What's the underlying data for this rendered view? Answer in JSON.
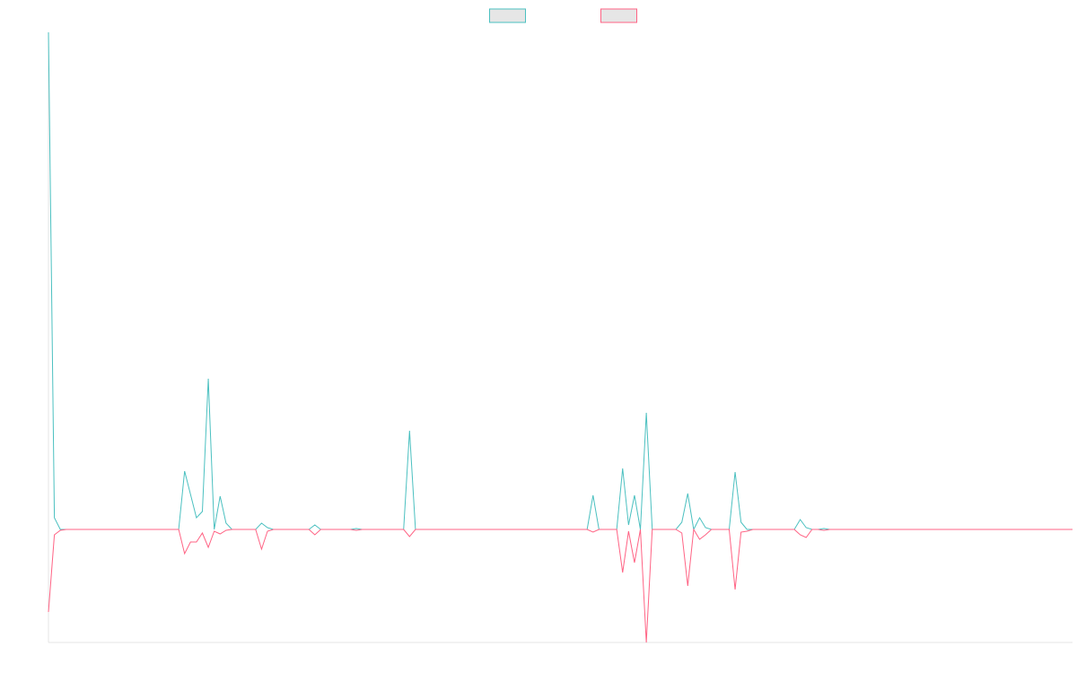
{
  "chart_data": {
    "type": "line",
    "ylim": [
      -126,
      554
    ],
    "legend": "top",
    "series": [
      {
        "color": "#4bc0c0",
        "values": [
          554,
          13,
          0,
          0,
          0,
          0,
          0,
          0,
          0,
          0,
          0,
          0,
          0,
          0,
          0,
          0,
          0,
          0,
          0,
          0,
          0,
          0,
          0,
          65,
          39,
          13,
          20,
          168,
          0,
          37,
          7,
          0,
          0,
          0,
          0,
          0,
          7,
          2,
          0,
          0,
          0,
          0,
          0,
          0,
          0,
          5,
          0,
          0,
          0,
          0,
          0,
          0,
          1,
          0,
          0,
          0,
          0,
          0,
          0,
          0,
          0,
          110,
          0,
          0,
          0,
          0,
          0,
          0,
          0,
          0,
          0,
          0,
          0,
          0,
          0,
          0,
          0,
          0,
          0,
          0,
          0,
          0,
          0,
          0,
          0,
          0,
          0,
          0,
          0,
          0,
          0,
          0,
          38,
          0,
          0,
          0,
          0,
          68,
          5,
          38,
          0,
          130,
          0,
          0,
          0,
          0,
          0,
          8,
          40,
          0,
          13,
          2,
          0,
          0,
          0,
          0,
          64,
          8,
          0,
          0,
          0,
          0,
          0,
          0,
          0,
          0,
          0,
          11,
          2,
          0,
          0,
          1,
          0,
          0,
          0,
          0,
          0,
          0,
          0,
          0,
          0,
          0,
          0,
          0,
          0,
          0,
          0,
          0,
          0,
          0,
          0,
          0,
          0,
          0,
          0,
          0,
          0,
          0,
          0,
          0,
          0,
          0,
          0,
          0,
          0,
          0,
          0,
          0,
          0,
          0,
          0,
          0,
          0,
          0
        ]
      },
      {
        "color": "#ff6384",
        "values": [
          -92,
          -6,
          -1,
          0,
          0,
          0,
          0,
          0,
          0,
          0,
          0,
          0,
          0,
          0,
          0,
          0,
          0,
          0,
          0,
          0,
          0,
          0,
          0,
          -27,
          -14,
          -14,
          -4,
          -20,
          -2,
          -5,
          -1,
          0,
          0,
          0,
          0,
          0,
          -22,
          -2,
          0,
          0,
          0,
          0,
          0,
          0,
          0,
          -6,
          0,
          0,
          0,
          0,
          0,
          0,
          -1,
          0,
          0,
          0,
          0,
          0,
          0,
          0,
          0,
          -8,
          0,
          0,
          0,
          0,
          0,
          0,
          0,
          0,
          0,
          0,
          0,
          0,
          0,
          0,
          0,
          0,
          0,
          0,
          0,
          0,
          0,
          0,
          0,
          0,
          0,
          0,
          0,
          0,
          0,
          0,
          -3,
          0,
          0,
          0,
          0,
          -48,
          -2,
          -37,
          0,
          -126,
          0,
          0,
          0,
          0,
          0,
          -4,
          -63,
          0,
          -11,
          -6,
          0,
          0,
          0,
          0,
          -67,
          -3,
          -2,
          0,
          0,
          0,
          0,
          0,
          0,
          0,
          0,
          -6,
          -9,
          0,
          0,
          -1,
          0,
          0,
          0,
          0,
          0,
          0,
          0,
          0,
          0,
          0,
          0,
          0,
          0,
          0,
          0,
          0,
          0,
          0,
          0,
          0,
          0,
          0,
          0,
          0,
          0,
          0,
          0,
          0,
          0,
          0,
          0,
          0,
          0,
          0,
          0,
          0,
          0,
          0,
          0,
          0,
          0,
          0
        ]
      }
    ]
  }
}
